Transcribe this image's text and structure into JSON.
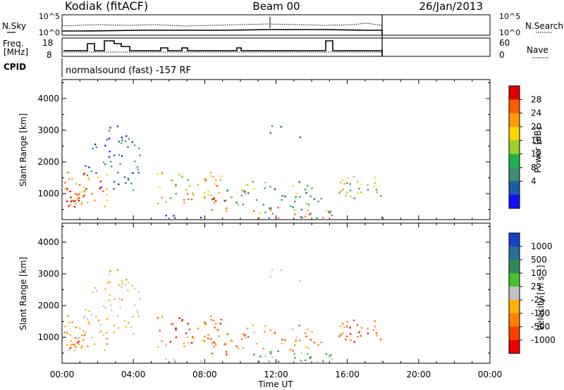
{
  "header": {
    "station": "Kodiak (fitACF)",
    "beam": "Beam 00",
    "date": "26/Jan/2013"
  },
  "panels": {
    "noise": {
      "left_label": "N.Sky",
      "right_label": "N.Search",
      "left_ticks": [
        "10^5",
        "10^0"
      ],
      "right_ticks": [
        "10^5",
        "10^0"
      ]
    },
    "freq": {
      "left_label_1": "Freq.",
      "left_label_2": "[MHz]",
      "right_label": "Nave",
      "left_ticks": [
        "18",
        "8"
      ],
      "right_ticks": [
        "60",
        "0"
      ]
    },
    "cpid": {
      "label": "CPID",
      "text": "normalsound (fast) -157 RF"
    },
    "power_colorbar": {
      "label": "Power [dB]",
      "ticks": [
        "28",
        "24",
        "20",
        "16",
        "12",
        "8",
        "4"
      ],
      "colors": [
        "#dd0000",
        "#ff5a00",
        "#ff9a00",
        "#ffd400",
        "#9ad12b",
        "#1fb24a",
        "#3e8c74",
        "#1c5ca8",
        "#1010ff"
      ]
    },
    "velocity_colorbar": {
      "label": "Velocity [m s⁻¹]",
      "ticks": [
        "1000",
        "500",
        "100",
        "25",
        "-25",
        "-100",
        "-500",
        "-1000"
      ],
      "colors": [
        "#1a3fc8",
        "#2a6e9a",
        "#2f8a57",
        "#44c42b",
        "#c2c2c2",
        "#ffb000",
        "#ff8000",
        "#ff4000",
        "#e80000"
      ]
    }
  },
  "chart_data": [
    {
      "type": "heatmap",
      "title": "",
      "ylabel": "Slant Range [km]",
      "xlabel": "Time UT",
      "x_ticks": [
        "00:00",
        "04:00",
        "08:00",
        "12:00",
        "16:00",
        "20:00",
        "00:00"
      ],
      "y_ticks": [
        "1000",
        "2000",
        "3000",
        "4000"
      ],
      "ylim": [
        180,
        4600
      ],
      "colorbar": "Power [dB]"
    },
    {
      "type": "heatmap",
      "title": "",
      "ylabel": "Slant Range [km]",
      "xlabel": "Time UT",
      "x_ticks": [
        "00:00",
        "04:00",
        "08:00",
        "12:00",
        "16:00",
        "20:00",
        "00:00"
      ],
      "y_ticks": [
        "1000",
        "2000",
        "3000",
        "4000"
      ],
      "ylim": [
        180,
        4600
      ],
      "colorbar": "Velocity [m s⁻¹]"
    }
  ]
}
